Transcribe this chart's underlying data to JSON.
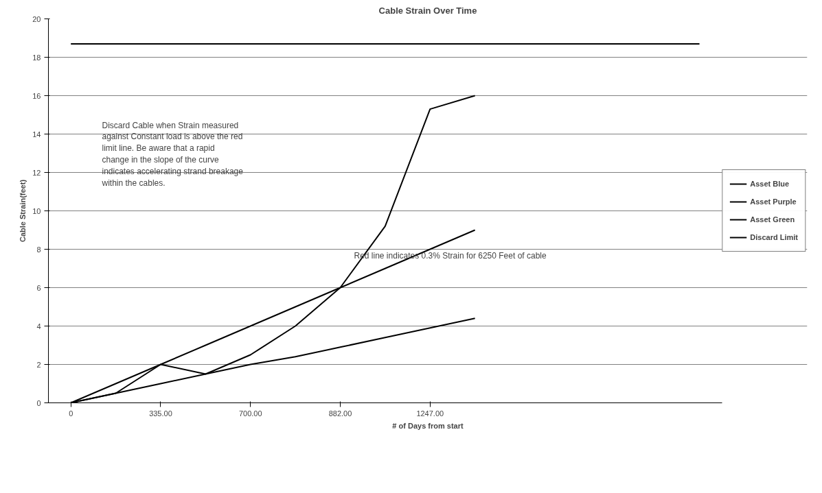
{
  "chart_data": {
    "type": "line",
    "title": "Cable Strain Over Time",
    "xlabel": "# of Days from start",
    "ylabel": "Cable Strain(feet)",
    "categories": [
      "0",
      null,
      "335.00",
      null,
      "700.00",
      null,
      "882.00",
      null,
      "1247.00",
      null,
      null,
      null,
      null,
      null,
      null
    ],
    "series": [
      {
        "name": "Asset Blue",
        "color": "#000000",
        "values": [
          0,
          1,
          2,
          3,
          4,
          5,
          6,
          7,
          8,
          9,
          null,
          null,
          null,
          null,
          null
        ]
      },
      {
        "name": "Asset Purple",
        "color": "#000000",
        "values": [
          0,
          0.5,
          1.0,
          1.5,
          2.0,
          2.4,
          2.9,
          3.4,
          3.9,
          4.4,
          null,
          null,
          null,
          null,
          null
        ]
      },
      {
        "name": "Asset Green",
        "color": "#000000",
        "values": [
          0,
          0.5,
          2.0,
          1.5,
          2.5,
          4.0,
          6.0,
          9.2,
          15.3,
          16.0,
          null,
          null,
          null,
          null,
          null
        ]
      },
      {
        "name": "Discard Limit",
        "color": "#000000",
        "values": [
          18.7,
          18.7,
          18.7,
          18.7,
          18.7,
          18.7,
          18.7,
          18.7,
          18.7,
          18.7,
          18.7,
          18.7,
          18.7,
          18.7,
          18.7
        ]
      }
    ],
    "ylim": [
      0,
      20
    ],
    "yticks": [
      0,
      2,
      4,
      6,
      8,
      10,
      12,
      14,
      16,
      18,
      20
    ],
    "grid": "y",
    "legend": "right",
    "annotations": [
      "Discard Cable when Strain measured against Constant load is above the red limit line. Be aware that a rapid change in the slope of the curve indicates accelerating strand breakage within the cables.",
      "Red line indicates 0.3% Strain for 6250 Feet of cable"
    ]
  }
}
